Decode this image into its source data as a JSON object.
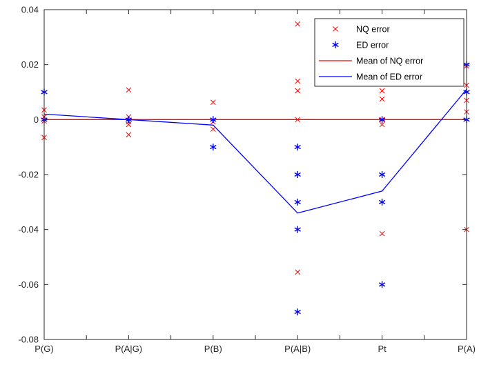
{
  "chart_data": {
    "type": "scatter",
    "categories": [
      "P(G)",
      "P(A|G)",
      "P(B)",
      "P(A|B)",
      "Pt",
      "P(A)"
    ],
    "ylim": [
      -0.08,
      0.04
    ],
    "yticks": [
      "-0.08",
      "-0.06",
      "-0.04",
      "-0.02",
      "0",
      "0.02",
      "0.04"
    ],
    "grid": false,
    "legend_position": "top-right",
    "series": [
      {
        "name": "NQ error",
        "marker": "x",
        "color": "#ff0000",
        "points": [
          [
            0,
            0.0035
          ],
          [
            0,
            0.001
          ],
          [
            0,
            -0.0005
          ],
          [
            0,
            -0.0065
          ],
          [
            1,
            0.0108
          ],
          [
            1,
            0.001
          ],
          [
            1,
            -0.0008
          ],
          [
            1,
            -0.0018
          ],
          [
            1,
            -0.0055
          ],
          [
            2,
            0.0063
          ],
          [
            2,
            -0.0008
          ],
          [
            2,
            -0.0035
          ],
          [
            3,
            0.0348
          ],
          [
            3,
            0.014
          ],
          [
            3,
            0.0105
          ],
          [
            3,
            0.0
          ],
          [
            3,
            -0.0555
          ],
          [
            4,
            0.0105
          ],
          [
            4,
            0.0075
          ],
          [
            4,
            0.0
          ],
          [
            4,
            -0.0018
          ],
          [
            4,
            -0.0415
          ],
          [
            5,
            0.0195
          ],
          [
            5,
            0.0125
          ],
          [
            5,
            0.007
          ],
          [
            5,
            0.0028
          ],
          [
            5,
            -0.04
          ]
        ]
      },
      {
        "name": "ED error",
        "marker": "asterisk",
        "color": "#0000ff",
        "points": [
          [
            0,
            0.01
          ],
          [
            0,
            0.0
          ],
          [
            1,
            0.0
          ],
          [
            2,
            0.0
          ],
          [
            2,
            -0.01
          ],
          [
            3,
            -0.01
          ],
          [
            3,
            -0.02
          ],
          [
            3,
            -0.03
          ],
          [
            3,
            -0.04
          ],
          [
            3,
            -0.07
          ],
          [
            4,
            0.0
          ],
          [
            4,
            -0.02
          ],
          [
            4,
            -0.03
          ],
          [
            4,
            -0.06
          ],
          [
            5,
            0.02
          ],
          [
            5,
            0.01
          ],
          [
            5,
            0.0
          ]
        ]
      },
      {
        "name": "Mean of NQ error",
        "marker": "line",
        "color": "#ff0000",
        "values": [
          0,
          0,
          0,
          0,
          0,
          0
        ]
      },
      {
        "name": "Mean of ED error",
        "marker": "line",
        "color": "#0000ff",
        "values": [
          0.002,
          0.0,
          -0.002,
          -0.034,
          -0.026,
          0.011
        ]
      }
    ]
  }
}
